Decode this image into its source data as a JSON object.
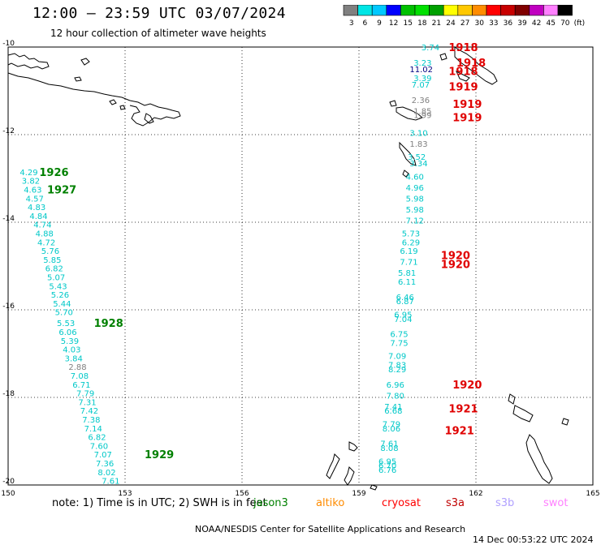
{
  "header": {
    "title": "12:00 – 23:59 UTC 03/07/2024",
    "subtitle": "12 hour collection of altimeter wave heights"
  },
  "legend": {
    "unit": "(ft)",
    "labels": [
      "3",
      "6",
      "9",
      "12",
      "15",
      "18",
      "21",
      "24",
      "27",
      "30",
      "33",
      "36",
      "39",
      "42",
      "45",
      "70"
    ],
    "colors": [
      "#808080",
      "#00e5e5",
      "#00c8ff",
      "#0000ff",
      "#00c000",
      "#00e000",
      "#00a000",
      "#ffff00",
      "#ffc800",
      "#ff8c00",
      "#ff0000",
      "#c80000",
      "#800000",
      "#c000c0",
      "#ff80ff",
      "#000000"
    ]
  },
  "map": {
    "x_ticks": [
      "150",
      "153",
      "156",
      "159",
      "162",
      "165"
    ],
    "y_ticks": [
      "-10",
      "-12",
      "-14",
      "-16",
      "-18",
      "-20"
    ],
    "lon_range": [
      150,
      165
    ],
    "lat_range": [
      -10,
      -20
    ]
  },
  "orbits": [
    {
      "label": "1918",
      "lon": 161.3,
      "lat": -10.0
    },
    {
      "label": "1918",
      "lon": 161.5,
      "lat": -10.35
    },
    {
      "label": "1918",
      "lon": 161.3,
      "lat": -10.55
    },
    {
      "label": "1919",
      "lon": 161.3,
      "lat": -10.9
    },
    {
      "label": "1919",
      "lon": 161.4,
      "lat": -11.3
    },
    {
      "label": "1919",
      "lon": 161.4,
      "lat": -11.6
    },
    {
      "label": "1926",
      "lon": 150.8,
      "lat": -12.85
    },
    {
      "label": "1927",
      "lon": 151.0,
      "lat": -13.25
    },
    {
      "label": "1920",
      "lon": 161.1,
      "lat": -14.75
    },
    {
      "label": "1920",
      "lon": 161.1,
      "lat": -14.95
    },
    {
      "label": "1928",
      "lon": 152.2,
      "lat": -16.3
    },
    {
      "label": "1920",
      "lon": 161.4,
      "lat": -17.7
    },
    {
      "label": "1921",
      "lon": 161.3,
      "lat": -18.25
    },
    {
      "label": "1921",
      "lon": 161.2,
      "lat": -18.75
    },
    {
      "label": "1929",
      "lon": 153.5,
      "lat": -19.3
    }
  ],
  "swh_points": [
    {
      "v": "3.74",
      "lon": 160.6,
      "lat": -10.0,
      "c": "#00c8c8"
    },
    {
      "v": "3.23",
      "lon": 160.4,
      "lat": -10.35,
      "c": "#00c8c8"
    },
    {
      "v": "11.02",
      "lon": 160.3,
      "lat": -10.5,
      "c": "#000080"
    },
    {
      "v": "3.39",
      "lon": 160.4,
      "lat": -10.7,
      "c": "#00c8c8"
    },
    {
      "v": "7.07",
      "lon": 160.35,
      "lat": -10.85,
      "c": "#00c8c8"
    },
    {
      "v": "2.36",
      "lon": 160.35,
      "lat": -11.2,
      "c": "#808080"
    },
    {
      "v": "1.85",
      "lon": 160.4,
      "lat": -11.45,
      "c": "#808080"
    },
    {
      "v": "1.99",
      "lon": 160.4,
      "lat": -11.55,
      "c": "#808080"
    },
    {
      "v": "3.10",
      "lon": 160.3,
      "lat": -11.95,
      "c": "#00c8c8"
    },
    {
      "v": "1.83",
      "lon": 160.3,
      "lat": -12.2,
      "c": "#808080"
    },
    {
      "v": "3.52",
      "lon": 160.25,
      "lat": -12.5,
      "c": "#00c8c8"
    },
    {
      "v": "3.34",
      "lon": 160.3,
      "lat": -12.65,
      "c": "#00c8c8"
    },
    {
      "v": "4.60",
      "lon": 160.2,
      "lat": -12.95,
      "c": "#00c8c8"
    },
    {
      "v": "4.96",
      "lon": 160.2,
      "lat": -13.2,
      "c": "#00c8c8"
    },
    {
      "v": "5.98",
      "lon": 160.2,
      "lat": -13.45,
      "c": "#00c8c8"
    },
    {
      "v": "5.98",
      "lon": 160.2,
      "lat": -13.7,
      "c": "#00c8c8"
    },
    {
      "v": "7.12",
      "lon": 160.2,
      "lat": -13.95,
      "c": "#00c8c8"
    },
    {
      "v": "5.73",
      "lon": 160.1,
      "lat": -14.25,
      "c": "#00c8c8"
    },
    {
      "v": "6.29",
      "lon": 160.1,
      "lat": -14.45,
      "c": "#00c8c8"
    },
    {
      "v": "6.19",
      "lon": 160.05,
      "lat": -14.65,
      "c": "#00c8c8"
    },
    {
      "v": "7.71",
      "lon": 160.05,
      "lat": -14.9,
      "c": "#00c8c8"
    },
    {
      "v": "5.81",
      "lon": 160.0,
      "lat": -15.15,
      "c": "#00c8c8"
    },
    {
      "v": "6.11",
      "lon": 160.0,
      "lat": -15.35,
      "c": "#00c8c8"
    },
    {
      "v": "6.46",
      "lon": 159.95,
      "lat": -15.7,
      "c": "#00c8c8"
    },
    {
      "v": "6.87",
      "lon": 159.95,
      "lat": -15.8,
      "c": "#00c8c8"
    },
    {
      "v": "6.95",
      "lon": 159.9,
      "lat": -16.1,
      "c": "#00c8c8"
    },
    {
      "v": "7.04",
      "lon": 159.9,
      "lat": -16.2,
      "c": "#00c8c8"
    },
    {
      "v": "6.75",
      "lon": 159.8,
      "lat": -16.55,
      "c": "#00c8c8"
    },
    {
      "v": "7.75",
      "lon": 159.8,
      "lat": -16.75,
      "c": "#00c8c8"
    },
    {
      "v": "7.09",
      "lon": 159.75,
      "lat": -17.05,
      "c": "#00c8c8"
    },
    {
      "v": "7.83",
      "lon": 159.75,
      "lat": -17.25,
      "c": "#00c8c8"
    },
    {
      "v": "8.29",
      "lon": 159.75,
      "lat": -17.35,
      "c": "#00c8c8"
    },
    {
      "v": "6.96",
      "lon": 159.7,
      "lat": -17.7,
      "c": "#00c8c8"
    },
    {
      "v": "7.80",
      "lon": 159.7,
      "lat": -17.95,
      "c": "#00c8c8"
    },
    {
      "v": "7.41",
      "lon": 159.65,
      "lat": -18.2,
      "c": "#00c8c8"
    },
    {
      "v": "6.68",
      "lon": 159.65,
      "lat": -18.3,
      "c": "#00c8c8"
    },
    {
      "v": "7.79",
      "lon": 159.6,
      "lat": -18.6,
      "c": "#00c8c8"
    },
    {
      "v": "8.06",
      "lon": 159.6,
      "lat": -18.7,
      "c": "#00c8c8"
    },
    {
      "v": "7.61",
      "lon": 159.55,
      "lat": -19.05,
      "c": "#00c8c8"
    },
    {
      "v": "8.08",
      "lon": 159.55,
      "lat": -19.15,
      "c": "#00c8c8"
    },
    {
      "v": "6.95",
      "lon": 159.5,
      "lat": -19.45,
      "c": "#00c8c8"
    },
    {
      "v": "6.70",
      "lon": 159.5,
      "lat": -19.55,
      "c": "#00c8c8"
    },
    {
      "v": "6.76",
      "lon": 159.5,
      "lat": -19.65,
      "c": "#00c8c8"
    },
    {
      "v": "4.29",
      "lon": 150.3,
      "lat": -12.85,
      "c": "#00c8c8"
    },
    {
      "v": "3.82",
      "lon": 150.35,
      "lat": -13.05,
      "c": "#00c8c8"
    },
    {
      "v": "4.63",
      "lon": 150.4,
      "lat": -13.25,
      "c": "#00c8c8"
    },
    {
      "v": "4.57",
      "lon": 150.45,
      "lat": -13.45,
      "c": "#00c8c8"
    },
    {
      "v": "4.83",
      "lon": 150.5,
      "lat": -13.65,
      "c": "#00c8c8"
    },
    {
      "v": "4.84",
      "lon": 150.55,
      "lat": -13.85,
      "c": "#00c8c8"
    },
    {
      "v": "4.74",
      "lon": 150.65,
      "lat": -14.05,
      "c": "#00c8c8"
    },
    {
      "v": "4.88",
      "lon": 150.7,
      "lat": -14.25,
      "c": "#00c8c8"
    },
    {
      "v": "4.72",
      "lon": 150.75,
      "lat": -14.45,
      "c": "#00c8c8"
    },
    {
      "v": "5.76",
      "lon": 150.85,
      "lat": -14.65,
      "c": "#00c8c8"
    },
    {
      "v": "5.85",
      "lon": 150.9,
      "lat": -14.85,
      "c": "#00c8c8"
    },
    {
      "v": "6.82",
      "lon": 150.95,
      "lat": -15.05,
      "c": "#00c8c8"
    },
    {
      "v": "5.07",
      "lon": 151.0,
      "lat": -15.25,
      "c": "#00c8c8"
    },
    {
      "v": "5.43",
      "lon": 151.05,
      "lat": -15.45,
      "c": "#00c8c8"
    },
    {
      "v": "5.26",
      "lon": 151.1,
      "lat": -15.65,
      "c": "#00c8c8"
    },
    {
      "v": "5.44",
      "lon": 151.15,
      "lat": -15.85,
      "c": "#00c8c8"
    },
    {
      "v": "5.70",
      "lon": 151.2,
      "lat": -16.05,
      "c": "#00c8c8"
    },
    {
      "v": "5.53",
      "lon": 151.25,
      "lat": -16.3,
      "c": "#00c8c8"
    },
    {
      "v": "6.06",
      "lon": 151.3,
      "lat": -16.5,
      "c": "#00c8c8"
    },
    {
      "v": "5.39",
      "lon": 151.35,
      "lat": -16.7,
      "c": "#00c8c8"
    },
    {
      "v": "4.03",
      "lon": 151.4,
      "lat": -16.9,
      "c": "#00c8c8"
    },
    {
      "v": "3.84",
      "lon": 151.45,
      "lat": -17.1,
      "c": "#00c8c8"
    },
    {
      "v": "2.88",
      "lon": 151.55,
      "lat": -17.3,
      "c": "#808080"
    },
    {
      "v": "7.08",
      "lon": 151.6,
      "lat": -17.5,
      "c": "#00c8c8"
    },
    {
      "v": "6.71",
      "lon": 151.65,
      "lat": -17.7,
      "c": "#00c8c8"
    },
    {
      "v": "7.79",
      "lon": 151.75,
      "lat": -17.9,
      "c": "#00c8c8"
    },
    {
      "v": "7.31",
      "lon": 151.8,
      "lat": -18.1,
      "c": "#00c8c8"
    },
    {
      "v": "7.42",
      "lon": 151.85,
      "lat": -18.3,
      "c": "#00c8c8"
    },
    {
      "v": "7.38",
      "lon": 151.9,
      "lat": -18.5,
      "c": "#00c8c8"
    },
    {
      "v": "7.14",
      "lon": 151.95,
      "lat": -18.7,
      "c": "#00c8c8"
    },
    {
      "v": "6.82",
      "lon": 152.05,
      "lat": -18.9,
      "c": "#00c8c8"
    },
    {
      "v": "7.60",
      "lon": 152.1,
      "lat": -19.1,
      "c": "#00c8c8"
    },
    {
      "v": "7.07",
      "lon": 152.2,
      "lat": -19.3,
      "c": "#00c8c8"
    },
    {
      "v": "7.36",
      "lon": 152.25,
      "lat": -19.5,
      "c": "#00c8c8"
    },
    {
      "v": "8.02",
      "lon": 152.3,
      "lat": -19.7,
      "c": "#00c8c8"
    },
    {
      "v": "7.61",
      "lon": 152.4,
      "lat": -19.9,
      "c": "#00c8c8"
    }
  ],
  "footer": {
    "note": "note: 1) Time is in UTC; 2) SWH is in feet",
    "missions": [
      {
        "name": "jason3",
        "color": "#008000"
      },
      {
        "name": "altiko",
        "color": "#ff8c00"
      },
      {
        "name": "cryosat",
        "color": "#ff0000"
      },
      {
        "name": "s3a",
        "color": "#c00000"
      },
      {
        "name": "s3b",
        "color": "#b0a0ff"
      },
      {
        "name": "swot",
        "color": "#ff80ff"
      }
    ],
    "source": "NOAA/NESDIS Center for Satellite Applications and Research",
    "generated": "14 Dec 00:53:22 UTC 2024"
  }
}
